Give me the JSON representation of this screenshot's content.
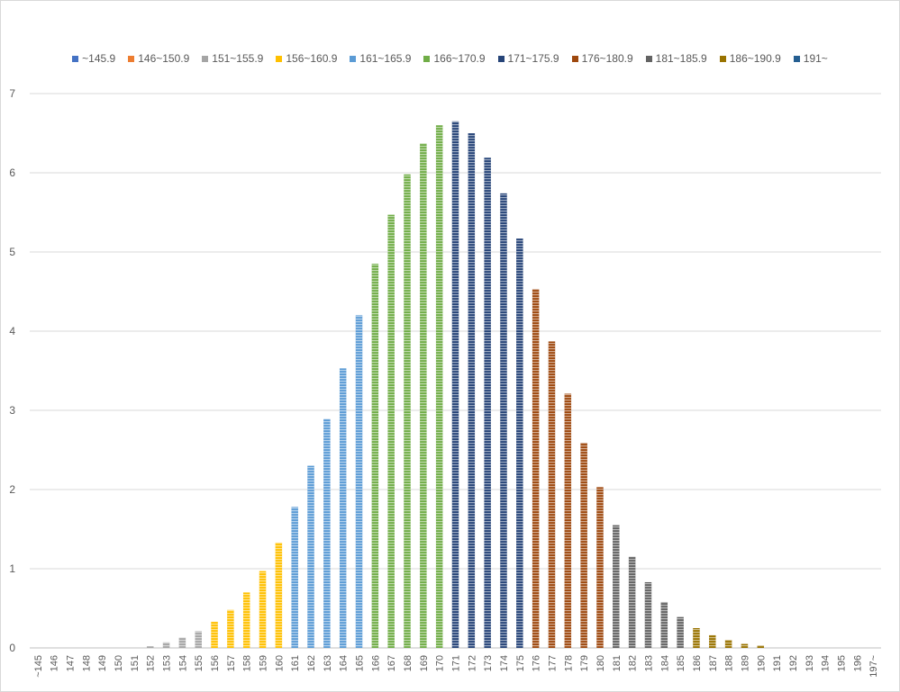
{
  "chart_data": {
    "type": "bar",
    "title": "",
    "xlabel": "",
    "ylabel": "",
    "ylim": [
      0,
      7
    ],
    "yticks": [
      "0",
      "1",
      "2",
      "3",
      "4",
      "5",
      "6",
      "7"
    ],
    "grid": true,
    "legend_position": "top",
    "legend": [
      {
        "name": "~145.9",
        "color": "#4472c4"
      },
      {
        "name": "146~150.9",
        "color": "#ed7d31"
      },
      {
        "name": "151~155.9",
        "color": "#a5a5a5"
      },
      {
        "name": "156~160.9",
        "color": "#ffc000"
      },
      {
        "name": "161~165.9",
        "color": "#5b9bd5"
      },
      {
        "name": "166~170.9",
        "color": "#70ad47"
      },
      {
        "name": "171~175.9",
        "color": "#264478"
      },
      {
        "name": "176~180.9",
        "color": "#9e480e"
      },
      {
        "name": "181~185.9",
        "color": "#636363"
      },
      {
        "name": "186~190.9",
        "color": "#997300"
      },
      {
        "name": "191~",
        "color": "#255e91"
      }
    ],
    "categories": [
      "~145",
      "146",
      "147",
      "148",
      "149",
      "150",
      "151",
      "152",
      "153",
      "154",
      "155",
      "156",
      "157",
      "158",
      "159",
      "160",
      "161",
      "162",
      "163",
      "164",
      "165",
      "166",
      "167",
      "168",
      "169",
      "170",
      "171",
      "172",
      "173",
      "174",
      "175",
      "176",
      "177",
      "178",
      "179",
      "180",
      "181",
      "182",
      "183",
      "184",
      "185",
      "186",
      "187",
      "188",
      "189",
      "190",
      "191",
      "192",
      "193",
      "194",
      "195",
      "196",
      "197~"
    ],
    "values": [
      0,
      0,
      0,
      0,
      0,
      0,
      0,
      0.02,
      0.07,
      0.13,
      0.21,
      0.33,
      0.48,
      0.7,
      0.97,
      1.33,
      1.78,
      2.3,
      2.89,
      3.53,
      4.2,
      4.85,
      5.47,
      5.98,
      6.37,
      6.6,
      6.65,
      6.5,
      6.19,
      5.74,
      5.17,
      4.53,
      3.87,
      3.21,
      2.59,
      2.03,
      1.55,
      1.15,
      0.83,
      0.58,
      0.39,
      0.25,
      0.16,
      0.1,
      0.05,
      0.03,
      0,
      0,
      0,
      0,
      0,
      0,
      0
    ],
    "group_index": [
      0,
      1,
      1,
      1,
      1,
      1,
      2,
      2,
      2,
      2,
      2,
      3,
      3,
      3,
      3,
      3,
      4,
      4,
      4,
      4,
      4,
      5,
      5,
      5,
      5,
      5,
      6,
      6,
      6,
      6,
      6,
      7,
      7,
      7,
      7,
      7,
      8,
      8,
      8,
      8,
      8,
      9,
      9,
      9,
      9,
      9,
      10,
      10,
      10,
      10,
      10,
      10,
      10
    ]
  }
}
